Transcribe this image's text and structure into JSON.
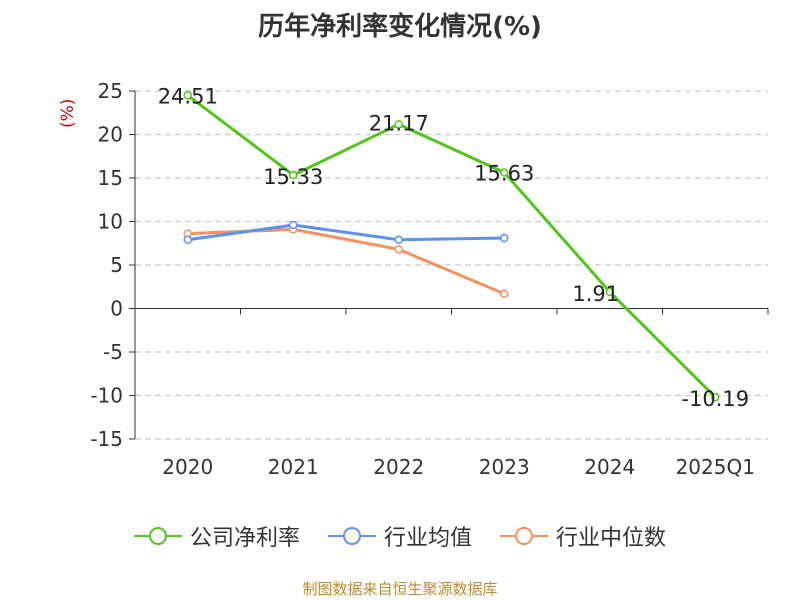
{
  "chart_data": {
    "type": "line",
    "title": "历年净利率变化情况(%)",
    "ylabel": "(%)",
    "categories": [
      "2020",
      "2021",
      "2022",
      "2023",
      "2024",
      "2025Q1"
    ],
    "ylim": [
      -15,
      25
    ],
    "yticks": [
      25,
      20,
      15,
      10,
      5,
      0,
      -5,
      -10,
      -15
    ],
    "grid": true,
    "legend_position": "bottom",
    "series": [
      {
        "name": "公司净利率",
        "color": "#52c41a",
        "values": [
          24.51,
          15.33,
          21.17,
          15.63,
          1.91,
          -10.19
        ],
        "labels": [
          "24.51",
          "15.33",
          "21.17",
          "15.63",
          "1.91",
          "-10.19"
        ]
      },
      {
        "name": "行业均值",
        "color": "#5b8ff9",
        "values": [
          7.9,
          9.6,
          7.9,
          8.1,
          null,
          null
        ]
      },
      {
        "name": "行业中位数",
        "color": "#f6905f",
        "values": [
          8.6,
          9.1,
          6.8,
          1.7,
          null,
          null
        ]
      }
    ]
  },
  "source": "制图数据来自恒生聚源数据库"
}
